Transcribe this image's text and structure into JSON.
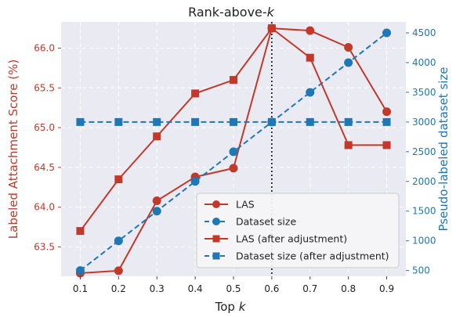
{
  "chart_data": {
    "type": "line",
    "title": "Rank-above-",
    "title_k": "k",
    "xlabel": "Top ",
    "xlabel_k": "k",
    "ylabel_left": "Labeled Attachment Score (%)",
    "ylabel_right": "Pseudo-labeled dataset size",
    "x": [
      0.1,
      0.2,
      0.3,
      0.4,
      0.5,
      0.6,
      0.7,
      0.8,
      0.9
    ],
    "x_tick_labels": [
      "0.1",
      "0.2",
      "0.3",
      "0.4",
      "0.5",
      "0.6",
      "0.7",
      "0.8",
      "0.9"
    ],
    "xlim": [
      0.05,
      0.95
    ],
    "ylim_left": [
      63.13,
      66.33
    ],
    "ylim_right": [
      403,
      4685
    ],
    "left_ticks": [
      63.5,
      64.0,
      64.5,
      65.0,
      65.5,
      66.0
    ],
    "left_tick_labels": [
      "63.5",
      "64.0",
      "64.5",
      "65.0",
      "65.5",
      "66.0"
    ],
    "right_ticks": [
      500,
      1000,
      1500,
      2000,
      2500,
      3000,
      3500,
      4000,
      4500
    ],
    "right_tick_labels": [
      "500",
      "1000",
      "1500",
      "2000",
      "2500",
      "3000",
      "3500",
      "4000",
      "4500"
    ],
    "vline_x": 0.6,
    "grid": true,
    "legend_position": "bottom-right",
    "series": [
      {
        "name": "LAS",
        "axis": "left",
        "color": "#c0392b",
        "marker": "circle",
        "dash": "solid",
        "values": [
          63.17,
          63.2,
          64.08,
          64.38,
          64.49,
          66.25,
          66.22,
          66.01,
          65.2
        ]
      },
      {
        "name": "Dataset size",
        "axis": "right",
        "color": "#1f77b4",
        "marker": "circle",
        "dash": "dashed",
        "values": [
          500,
          1000,
          1500,
          2000,
          2500,
          3000,
          3500,
          4000,
          4500
        ]
      },
      {
        "name": "LAS (after adjustment)",
        "axis": "left",
        "color": "#c0392b",
        "marker": "square",
        "dash": "solid",
        "values": [
          63.7,
          64.35,
          64.89,
          65.43,
          65.6,
          66.25,
          65.88,
          64.78,
          64.78
        ]
      },
      {
        "name": "Dataset size (after adjustment)",
        "axis": "right",
        "color": "#1f77b4",
        "marker": "square",
        "dash": "dashed",
        "values": [
          3000,
          3000,
          3000,
          3000,
          3000,
          3000,
          3000,
          3000,
          3000
        ]
      }
    ],
    "colors": {
      "left_axis": "#c0392b",
      "right_axis": "#1f77b4",
      "plot_background": "#eaeaf2"
    }
  }
}
